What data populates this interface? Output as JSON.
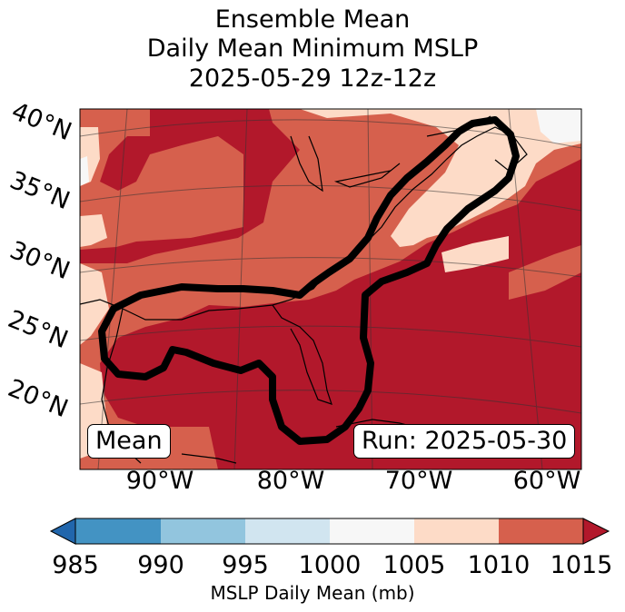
{
  "title": {
    "line1": "Ensemble Mean",
    "line2": "Daily Mean Minimum MSLP",
    "line3": "2025-05-29 12z-12z"
  },
  "map": {
    "lat_labels": [
      "40°N",
      "35°N",
      "30°N",
      "25°N",
      "20°N"
    ],
    "lon_labels": [
      "90°W",
      "80°W",
      "70°W",
      "60°W"
    ],
    "mean_label": "Mean",
    "run_label": "Run: 2025-05-30",
    "contour_description_color": "#000000"
  },
  "colorbar": {
    "ticks": [
      "985",
      "990",
      "995",
      "1000",
      "1005",
      "1010",
      "1015"
    ],
    "label": "MSLP Daily Mean (mb)",
    "colors": [
      "#2166ac",
      "#4393c3",
      "#92c5de",
      "#d1e5f0",
      "#f7f7f7",
      "#fddbc7",
      "#d6604d",
      "#b2182b"
    ]
  }
}
